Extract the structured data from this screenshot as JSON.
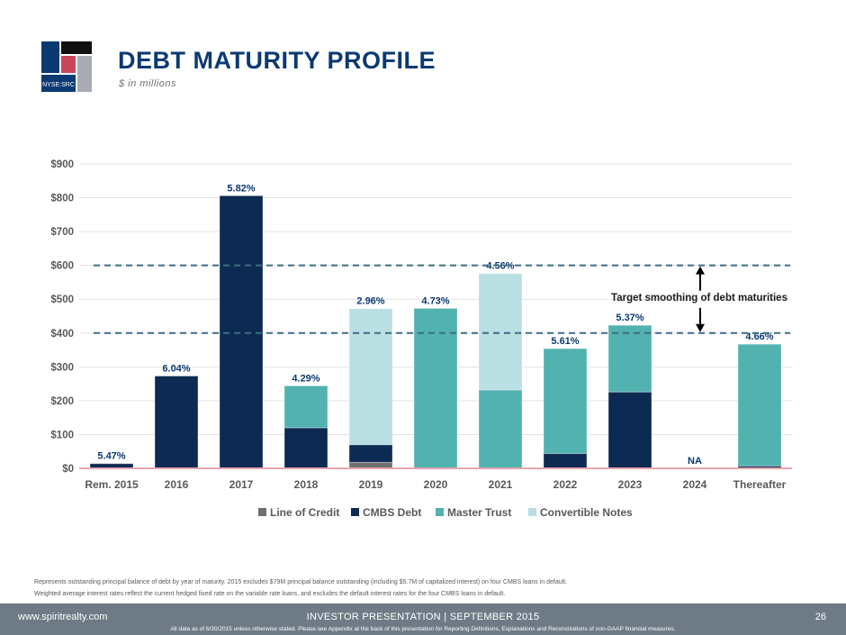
{
  "header": {
    "title": "DEBT MATURITY PROFILE",
    "subtitle": "$ in millions",
    "logo_text": "NYSE:SRC"
  },
  "chart_data": {
    "type": "bar",
    "stacked": true,
    "categories": [
      "Rem. 2015",
      "2016",
      "2017",
      "2018",
      "2019",
      "2020",
      "2021",
      "2022",
      "2023",
      "2024",
      "Thereafter"
    ],
    "series": [
      {
        "name": "Line of Credit",
        "color": "#6f6f6f",
        "values": [
          0,
          0,
          0,
          0,
          18,
          0,
          0,
          0,
          0,
          0,
          0
        ]
      },
      {
        "name": "CMBS Debt",
        "color": "#0d2b52",
        "values": [
          14,
          273,
          806,
          120,
          52,
          0,
          0,
          44,
          226,
          0,
          7
        ]
      },
      {
        "name": "Master Trust",
        "color": "#52b2b0",
        "values": [
          0,
          0,
          0,
          124,
          0,
          473,
          232,
          310,
          197,
          0,
          360
        ]
      },
      {
        "name": "Convertible Notes",
        "color": "#b9dfe2",
        "values": [
          0,
          0,
          0,
          0,
          402,
          0,
          344,
          0,
          0,
          0,
          0
        ]
      }
    ],
    "rate_labels": [
      "5.47%",
      "6.04%",
      "5.82%",
      "4.29%",
      "2.96%",
      "4.73%",
      "4.56%",
      "5.61%",
      "5.37%",
      "NA",
      "4.66%"
    ],
    "yticks": [
      "$0",
      "$100",
      "$200",
      "$300",
      "$400",
      "$500",
      "$600",
      "$700",
      "$800",
      "$900"
    ],
    "ylim": [
      0,
      900
    ],
    "reference_lines": [
      400,
      600
    ],
    "annotation": "Target smoothing of debt maturities",
    "legend_position": "bottom",
    "grid": true
  },
  "notes": {
    "line1": "Represents outstanding principal balance of debt by year of maturity. 2015 excludes $79M principal balance outstanding (including $5.7M of capitalized interest) on four CMBS loans in default.",
    "line2": "Weighted average interest rates reflect the current hedged fixed rate on the variable rate loans, and excludes the default interest rates for the four CMBS loans in default."
  },
  "footer": {
    "url": "www.spiritrealty.com",
    "center": "INVESTOR PRESENTATION | SEPTEMBER 2015",
    "page": "26",
    "disclaimer": "All data as of 6/30/2015 unless otherwise stated.  Please see Appendix at the back of this presentation for Reporting Definitions, Explanations and Reconciliations of non-GAAP financial measures."
  }
}
